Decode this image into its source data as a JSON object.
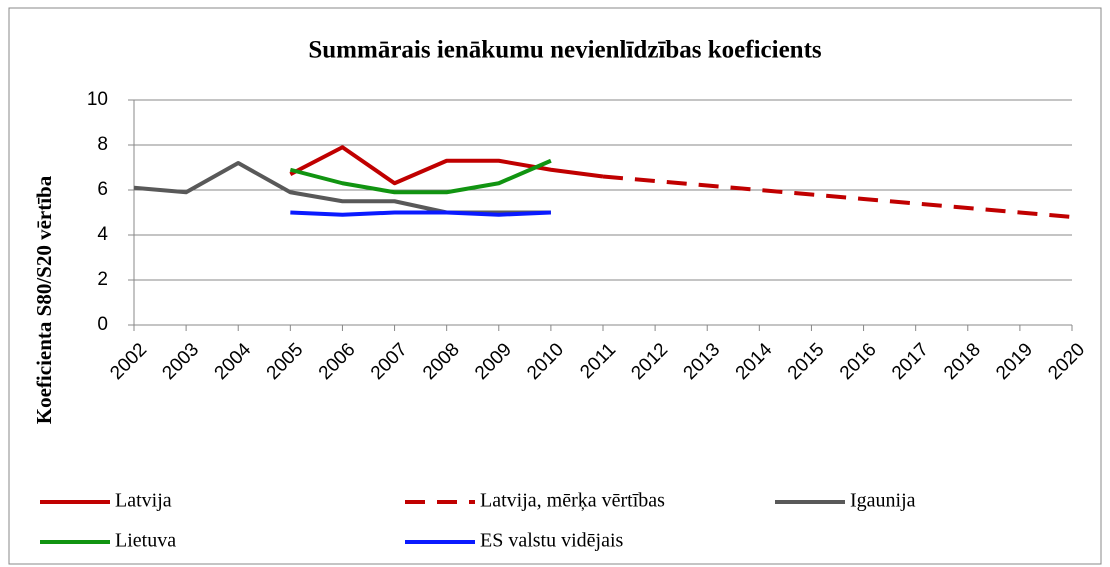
{
  "chart_data": {
    "type": "line",
    "title": "Summārais ienākumu nevienlīdzības koeficients",
    "y_label": "Koeficienta S80/S20 vērtība",
    "categories": [
      "2002",
      "2003",
      "2004",
      "2005",
      "2006",
      "2007",
      "2008",
      "2009",
      "2010",
      "2011",
      "2012",
      "2013",
      "2014",
      "2015",
      "2016",
      "2017",
      "2018",
      "2019",
      "2020"
    ],
    "series": [
      {
        "name": "Latvija",
        "color": "#c00000",
        "dashed": false,
        "values": [
          null,
          null,
          null,
          6.7,
          7.9,
          6.3,
          7.3,
          7.3,
          6.9,
          6.6,
          null,
          null,
          null,
          null,
          null,
          null,
          null,
          null,
          null
        ]
      },
      {
        "name": "Latvija, mērķa vērtības",
        "color": "#c00000",
        "dashed": true,
        "values": [
          null,
          null,
          null,
          null,
          null,
          null,
          null,
          null,
          null,
          6.6,
          6.4,
          6.2,
          6.0,
          5.8,
          5.6,
          5.4,
          5.2,
          5.0,
          4.8
        ]
      },
      {
        "name": "Igaunija",
        "color": "#595959",
        "dashed": false,
        "values": [
          6.1,
          5.9,
          7.2,
          5.9,
          5.5,
          5.5,
          5.0,
          5.0,
          5.0,
          null,
          null,
          null,
          null,
          null,
          null,
          null,
          null,
          null,
          null
        ]
      },
      {
        "name": "Lietuva",
        "color": "#119411",
        "dashed": false,
        "values": [
          null,
          null,
          null,
          6.9,
          6.3,
          5.9,
          5.9,
          6.3,
          7.3,
          null,
          null,
          null,
          null,
          null,
          null,
          null,
          null,
          null,
          null
        ]
      },
      {
        "name": "ES valstu vidējais",
        "color": "#0a1aff",
        "dashed": false,
        "values": [
          null,
          null,
          null,
          5.0,
          4.9,
          5.0,
          5.0,
          4.9,
          5.0,
          null,
          null,
          null,
          null,
          null,
          null,
          null,
          null,
          null,
          null
        ]
      }
    ],
    "ylim": [
      0,
      10
    ],
    "yticks": [
      0,
      2,
      4,
      6,
      8,
      10
    ],
    "grid": true,
    "legend": "bottom"
  }
}
